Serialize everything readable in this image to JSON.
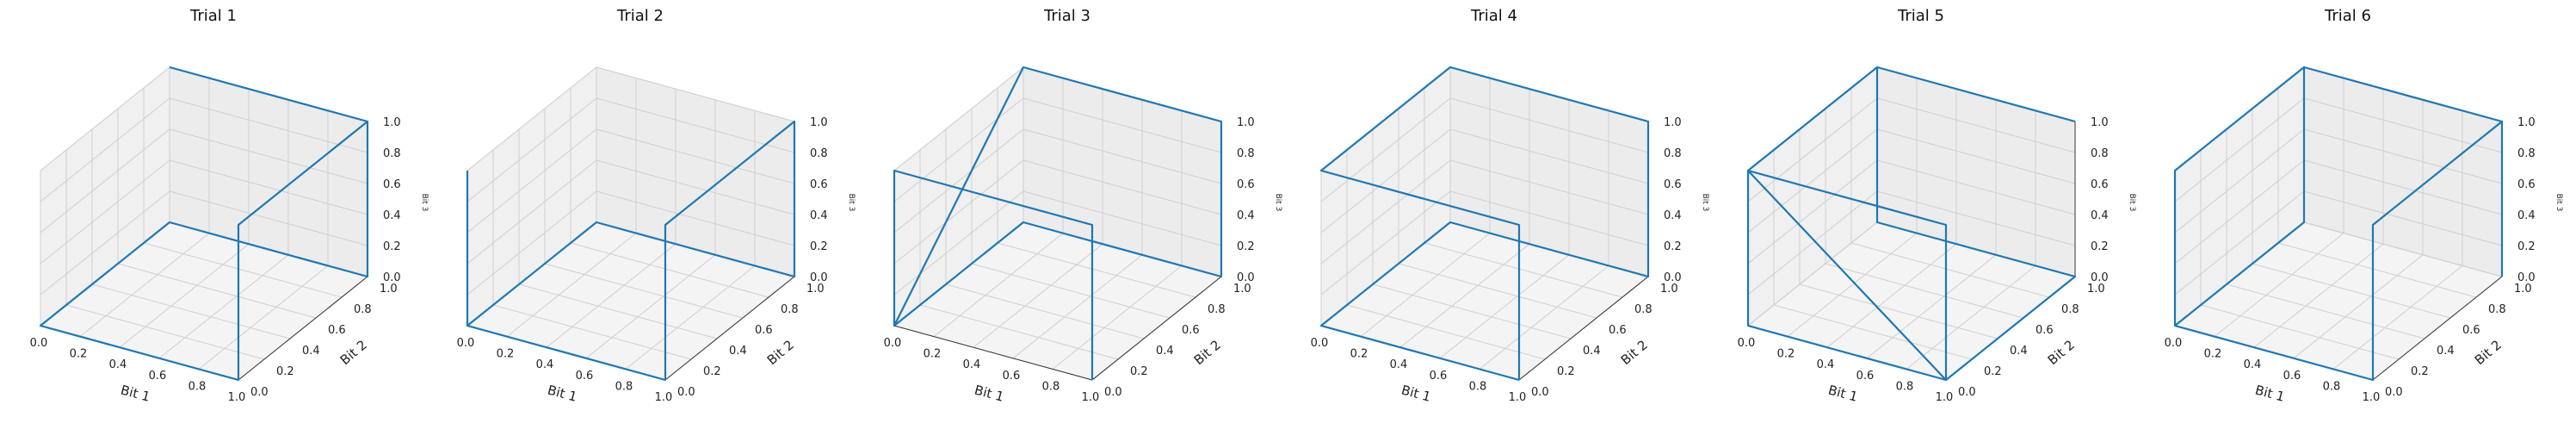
{
  "chart_data": [
    {
      "type": "line3d",
      "title": "Trial 1",
      "xlabel": "Bit 1",
      "ylabel": "Bit 2",
      "zlabel": "Bit 3",
      "xlim": [
        0,
        1
      ],
      "ylim": [
        0,
        1
      ],
      "zlim": [
        0,
        1
      ],
      "xticks": [
        "0.0",
        "0.2",
        "0.4",
        "0.6",
        "0.8",
        "1.0"
      ],
      "yticks": [
        "0.0",
        "0.2",
        "0.4",
        "0.6",
        "0.8",
        "1.0"
      ],
      "zticks": [
        "0.0",
        "0.2",
        "0.4",
        "0.6",
        "0.8",
        "1.0"
      ],
      "grid": true,
      "color": "#1f77b4",
      "points": [
        [
          0,
          1,
          1
        ],
        [
          1,
          1,
          1
        ],
        [
          1,
          0,
          1
        ],
        [
          1,
          0,
          0
        ],
        [
          0,
          0,
          0
        ],
        [
          0,
          1,
          0
        ],
        [
          1,
          1,
          0
        ],
        [
          1,
          1,
          1
        ]
      ]
    },
    {
      "type": "line3d",
      "title": "Trial 2",
      "xlabel": "Bit 1",
      "ylabel": "Bit 2",
      "zlabel": "Bit 3",
      "xlim": [
        0,
        1
      ],
      "ylim": [
        0,
        1
      ],
      "zlim": [
        0,
        1
      ],
      "xticks": [
        "0.0",
        "0.2",
        "0.4",
        "0.6",
        "0.8",
        "1.0"
      ],
      "yticks": [
        "0.0",
        "0.2",
        "0.4",
        "0.6",
        "0.8",
        "1.0"
      ],
      "zticks": [
        "0.0",
        "0.2",
        "0.4",
        "0.6",
        "0.8",
        "1.0"
      ],
      "grid": true,
      "color": "#1f77b4",
      "points": [
        [
          0,
          0,
          1
        ],
        [
          0,
          0,
          0
        ],
        [
          0,
          1,
          0
        ],
        [
          1,
          1,
          0
        ],
        [
          1,
          1,
          1
        ],
        [
          1,
          0,
          1
        ],
        [
          1,
          0,
          0
        ],
        [
          0,
          0,
          0
        ]
      ]
    },
    {
      "type": "line3d",
      "title": "Trial 3",
      "xlabel": "Bit 1",
      "ylabel": "Bit 2",
      "zlabel": "Bit 3",
      "xlim": [
        0,
        1
      ],
      "ylim": [
        0,
        1
      ],
      "zlim": [
        0,
        1
      ],
      "xticks": [
        "0.0",
        "0.2",
        "0.4",
        "0.6",
        "0.8",
        "1.0"
      ],
      "yticks": [
        "0.0",
        "0.2",
        "0.4",
        "0.6",
        "0.8",
        "1.0"
      ],
      "zticks": [
        "0.0",
        "0.2",
        "0.4",
        "0.6",
        "0.8",
        "1.0"
      ],
      "grid": true,
      "color": "#1f77b4",
      "points": [
        [
          1,
          0,
          0
        ],
        [
          1,
          0,
          1
        ],
        [
          0,
          0,
          1
        ],
        [
          0,
          0,
          0
        ],
        [
          0,
          1,
          1
        ],
        [
          1,
          1,
          1
        ],
        [
          1,
          1,
          0
        ],
        [
          0,
          1,
          0
        ],
        [
          0,
          0,
          0
        ]
      ]
    },
    {
      "type": "line3d",
      "title": "Trial 4",
      "xlabel": "Bit 1",
      "ylabel": "Bit 2",
      "zlabel": "Bit 3",
      "xlim": [
        0,
        1
      ],
      "ylim": [
        0,
        1
      ],
      "zlim": [
        0,
        1
      ],
      "xticks": [
        "0.0",
        "0.2",
        "0.4",
        "0.6",
        "0.8",
        "1.0"
      ],
      "yticks": [
        "0.0",
        "0.2",
        "0.4",
        "0.6",
        "0.8",
        "1.0"
      ],
      "zticks": [
        "0.0",
        "0.2",
        "0.4",
        "0.6",
        "0.8",
        "1.0"
      ],
      "grid": true,
      "color": "#1f77b4",
      "points": [
        [
          1,
          0,
          0
        ],
        [
          1,
          0,
          1
        ],
        [
          0,
          0,
          1
        ],
        [
          0,
          1,
          1
        ],
        [
          1,
          1,
          1
        ],
        [
          1,
          1,
          0
        ],
        [
          0,
          1,
          0
        ],
        [
          0,
          0,
          0
        ],
        [
          1,
          0,
          0
        ]
      ]
    },
    {
      "type": "line3d",
      "title": "Trial 5",
      "xlabel": "Bit 1",
      "ylabel": "Bit 2",
      "zlabel": "Bit 3",
      "xlim": [
        0,
        1
      ],
      "ylim": [
        0,
        1
      ],
      "zlim": [
        0,
        1
      ],
      "xticks": [
        "0.0",
        "0.2",
        "0.4",
        "0.6",
        "0.8",
        "1.0"
      ],
      "yticks": [
        "0.0",
        "0.2",
        "0.4",
        "0.6",
        "0.8",
        "1.0"
      ],
      "zticks": [
        "0.0",
        "0.2",
        "0.4",
        "0.6",
        "0.8",
        "1.0"
      ],
      "grid": true,
      "color": "#1f77b4",
      "points": [
        [
          1,
          1,
          1
        ],
        [
          0,
          1,
          1
        ],
        [
          0,
          0,
          1
        ],
        [
          1,
          0,
          1
        ],
        [
          1,
          0,
          0
        ],
        [
          0,
          0,
          1
        ],
        [
          0,
          0,
          0
        ],
        [
          1,
          0,
          0
        ],
        [
          1,
          1,
          0
        ],
        [
          0,
          1,
          0
        ],
        [
          0,
          1,
          1
        ]
      ]
    },
    {
      "type": "line3d",
      "title": "Trial 6",
      "xlabel": "Bit 1",
      "ylabel": "Bit 2",
      "zlabel": "Bit 3",
      "xlim": [
        0,
        1
      ],
      "ylim": [
        0,
        1
      ],
      "zlim": [
        0,
        1
      ],
      "xticks": [
        "0.0",
        "0.2",
        "0.4",
        "0.6",
        "0.8",
        "1.0"
      ],
      "yticks": [
        "0.0",
        "0.2",
        "0.4",
        "0.6",
        "0.8",
        "1.0"
      ],
      "zticks": [
        "0.0",
        "0.2",
        "0.4",
        "0.6",
        "0.8",
        "1.0"
      ],
      "grid": true,
      "color": "#1f77b4",
      "points": [
        [
          1,
          1,
          0
        ],
        [
          1,
          1,
          1
        ],
        [
          0,
          1,
          1
        ],
        [
          0,
          0,
          1
        ],
        [
          0,
          0,
          0
        ],
        [
          1,
          0,
          0
        ],
        [
          1,
          0,
          1
        ],
        [
          1,
          1,
          1
        ],
        [
          1,
          0,
          1
        ],
        [
          1,
          0,
          0
        ],
        [
          0,
          0,
          0
        ],
        [
          0,
          1,
          0
        ],
        [
          0,
          1,
          1
        ]
      ]
    }
  ]
}
